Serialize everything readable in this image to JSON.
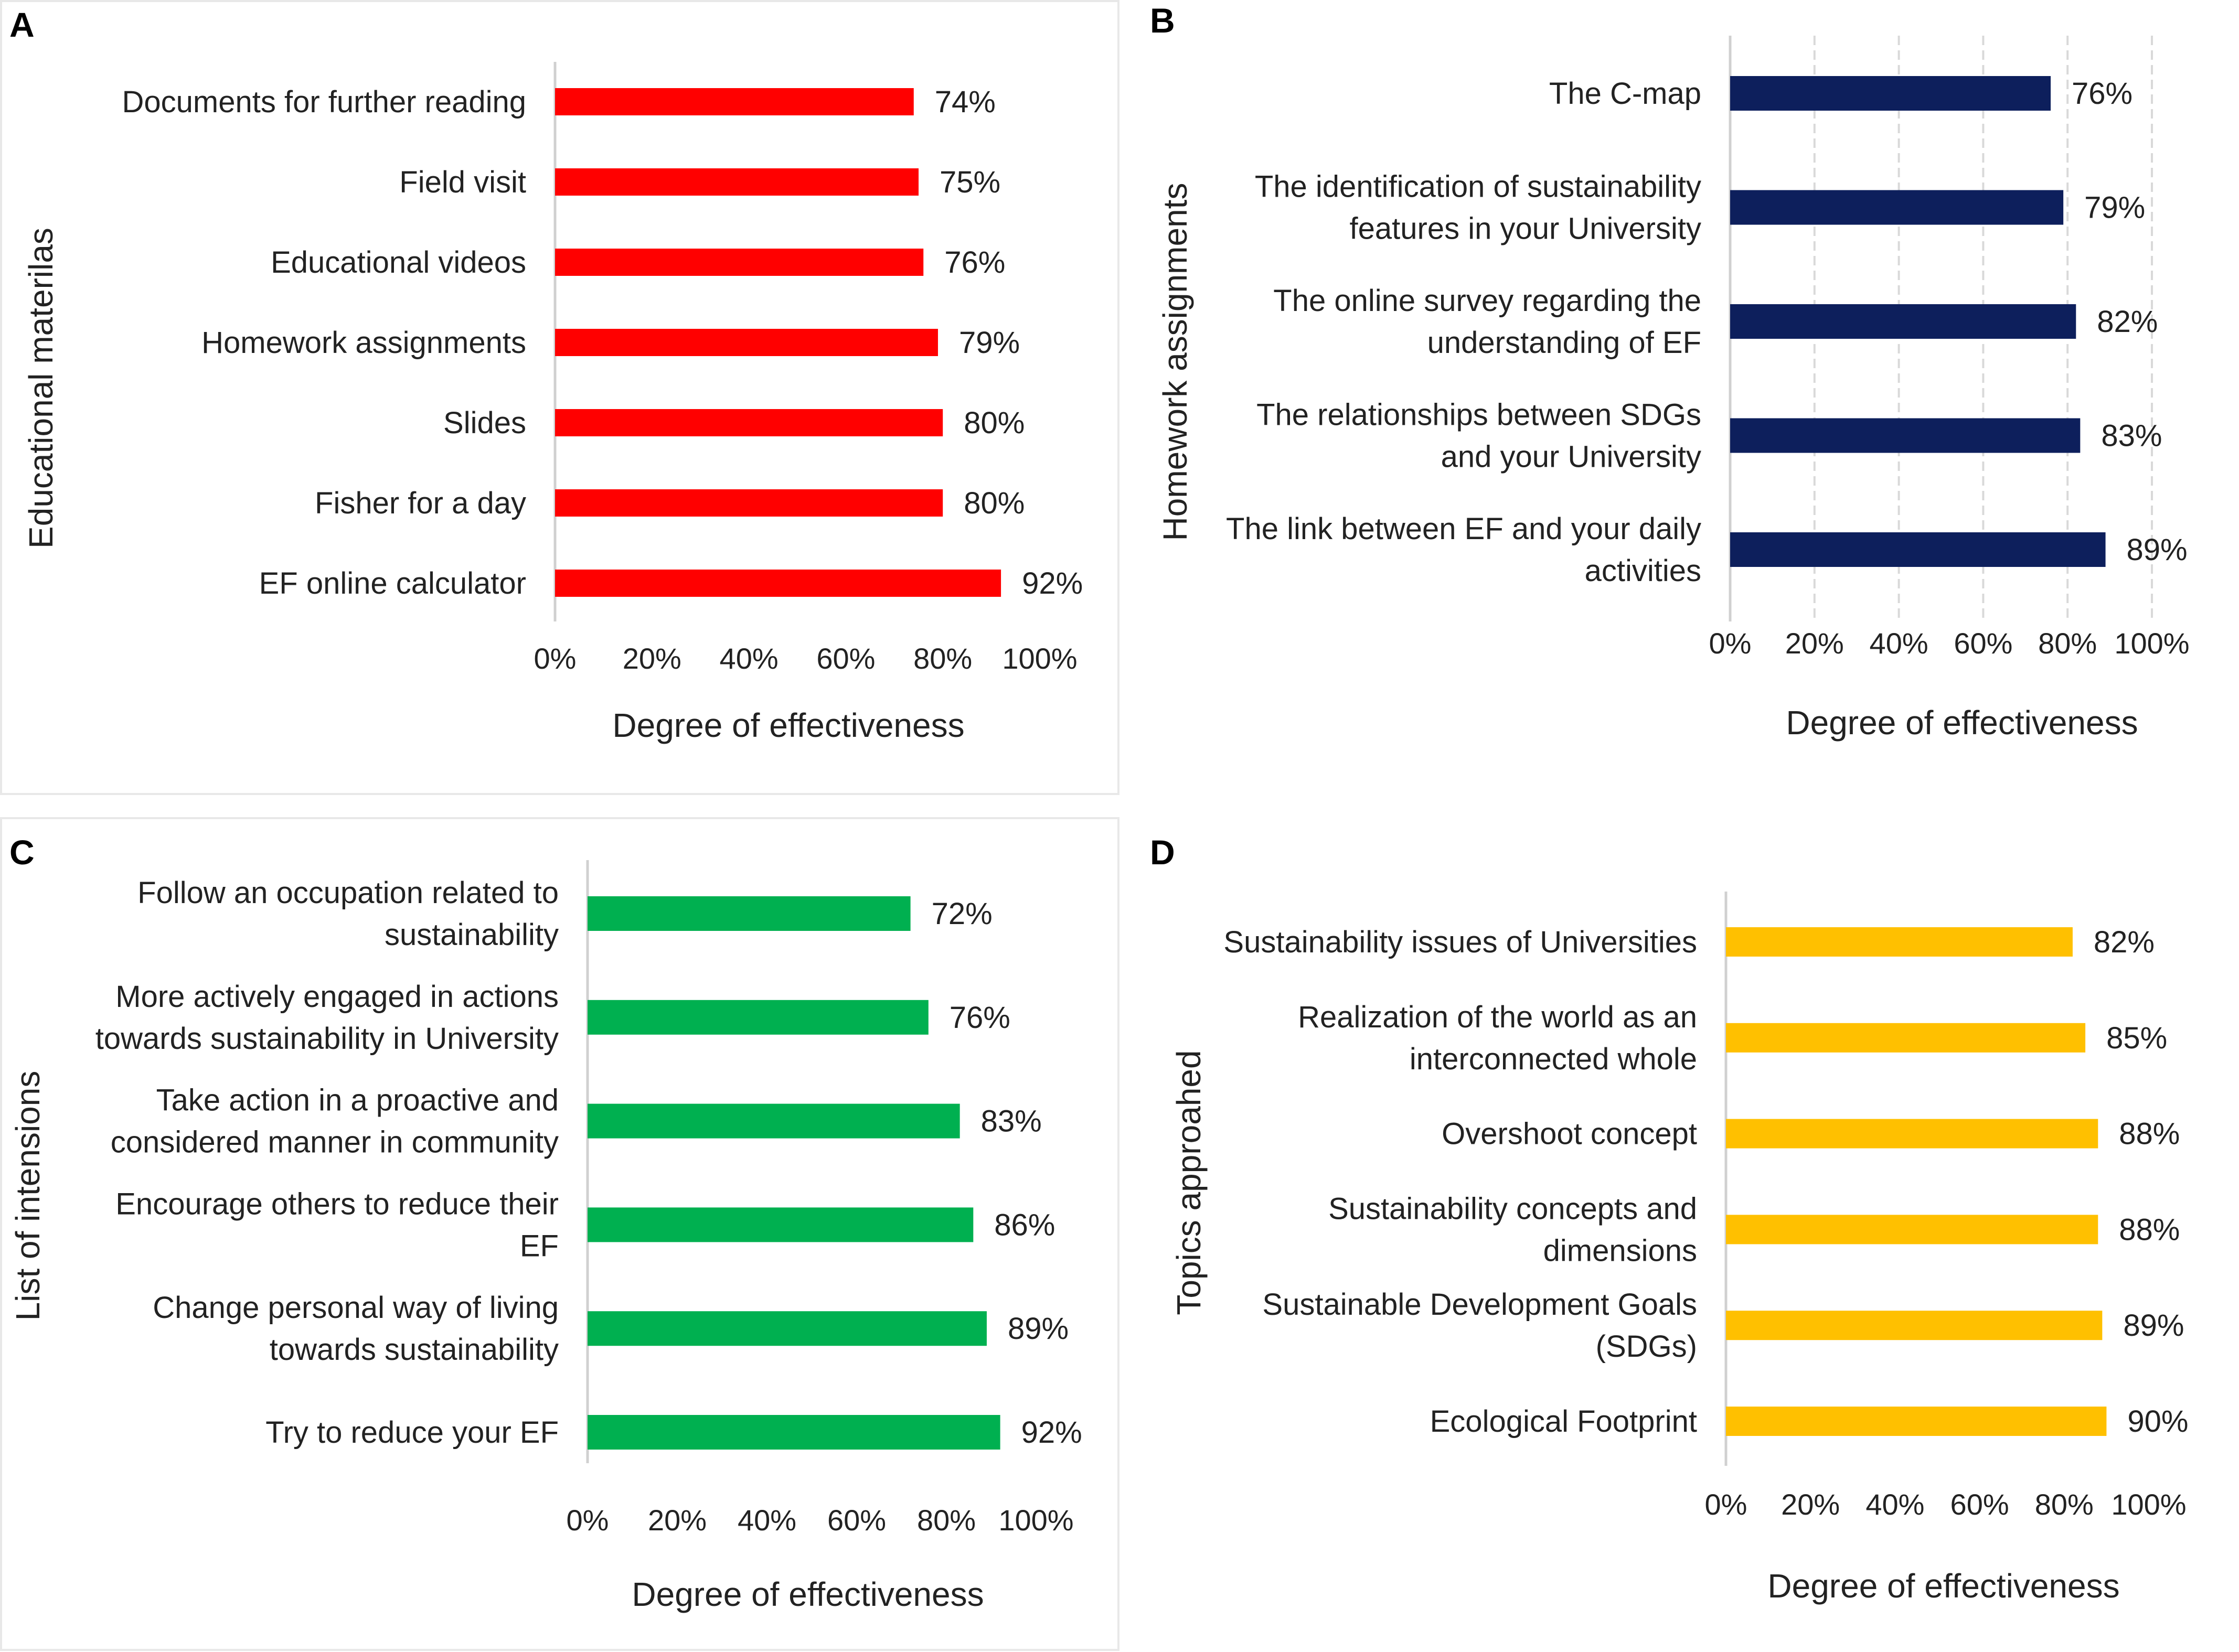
{
  "chart_data": [
    {
      "type": "bar",
      "orientation": "horizontal",
      "panel": "A",
      "ylabel": "Educational materilas",
      "xlabel": "Degree of effectiveness",
      "xlim": [
        0,
        100
      ],
      "xticks": [
        "0%",
        "20%",
        "40%",
        "60%",
        "80%",
        "100%"
      ],
      "bar_color": "#ff0000",
      "categories": [
        [
          "Documents for further reading"
        ],
        [
          "Field visit"
        ],
        [
          "Educational videos"
        ],
        [
          "Homework assignments"
        ],
        [
          "Slides"
        ],
        [
          "Fisher for a day"
        ],
        [
          "EF online calculator"
        ]
      ],
      "values": [
        74,
        75,
        76,
        79,
        80,
        80,
        92
      ],
      "value_labels": [
        "74%",
        "75%",
        "76%",
        "79%",
        "80%",
        "80%",
        "92%"
      ]
    },
    {
      "type": "bar",
      "orientation": "horizontal",
      "panel": "B",
      "ylabel": "Homework assignments",
      "xlabel": "Degree of effectiveness",
      "xlim": [
        0,
        100
      ],
      "xticks": [
        "0%",
        "20%",
        "40%",
        "60%",
        "80%",
        "100%"
      ],
      "bar_color": "#0d1f5c",
      "categories": [
        [
          "The C-map"
        ],
        [
          "The identification of sustainability",
          "features in your University"
        ],
        [
          "The online survey regarding the",
          "understanding of EF"
        ],
        [
          "The relationships between SDGs",
          "and your University"
        ],
        [
          "The link between EF and your daily",
          "activities"
        ]
      ],
      "values": [
        76,
        79,
        82,
        83,
        89
      ],
      "value_labels": [
        "76%",
        "79%",
        "82%",
        "83%",
        "89%"
      ]
    },
    {
      "type": "bar",
      "orientation": "horizontal",
      "panel": "C",
      "ylabel": "List of intensions",
      "xlabel": "Degree of effectiveness",
      "xlim": [
        0,
        100
      ],
      "xticks": [
        "0%",
        "20%",
        "40%",
        "60%",
        "80%",
        "100%"
      ],
      "bar_color": "#00b050",
      "categories": [
        [
          "Follow an occupation related to",
          "sustainability"
        ],
        [
          "More actively engaged in actions",
          "towards sustainability in University"
        ],
        [
          "Take action in a proactive and",
          "considered manner in community"
        ],
        [
          "Encourage others to reduce their",
          "EF"
        ],
        [
          "Change personal way of living",
          "towards sustainability"
        ],
        [
          "Try to reduce your EF"
        ]
      ],
      "values": [
        72,
        76,
        83,
        86,
        89,
        92
      ],
      "value_labels": [
        "72%",
        "76%",
        "83%",
        "86%",
        "89%",
        "92%"
      ]
    },
    {
      "type": "bar",
      "orientation": "horizontal",
      "panel": "D",
      "ylabel": "Topics approahed",
      "xlabel": "Degree of effectiveness",
      "xlim": [
        0,
        100
      ],
      "xticks": [
        "0%",
        "20%",
        "40%",
        "60%",
        "80%",
        "100%"
      ],
      "bar_color": "#ffc000",
      "categories": [
        [
          "Sustainability issues of Universities"
        ],
        [
          "Realization of the world as an",
          "interconnected whole"
        ],
        [
          "Overshoot concept"
        ],
        [
          "Sustainability concepts and",
          "dimensions"
        ],
        [
          "Sustainable Development Goals",
          "(SDGs)"
        ],
        [
          "Ecological Footprint"
        ]
      ],
      "values": [
        82,
        85,
        88,
        88,
        89,
        90
      ],
      "value_labels": [
        "82%",
        "85%",
        "88%",
        "88%",
        "89%",
        "90%"
      ]
    }
  ]
}
